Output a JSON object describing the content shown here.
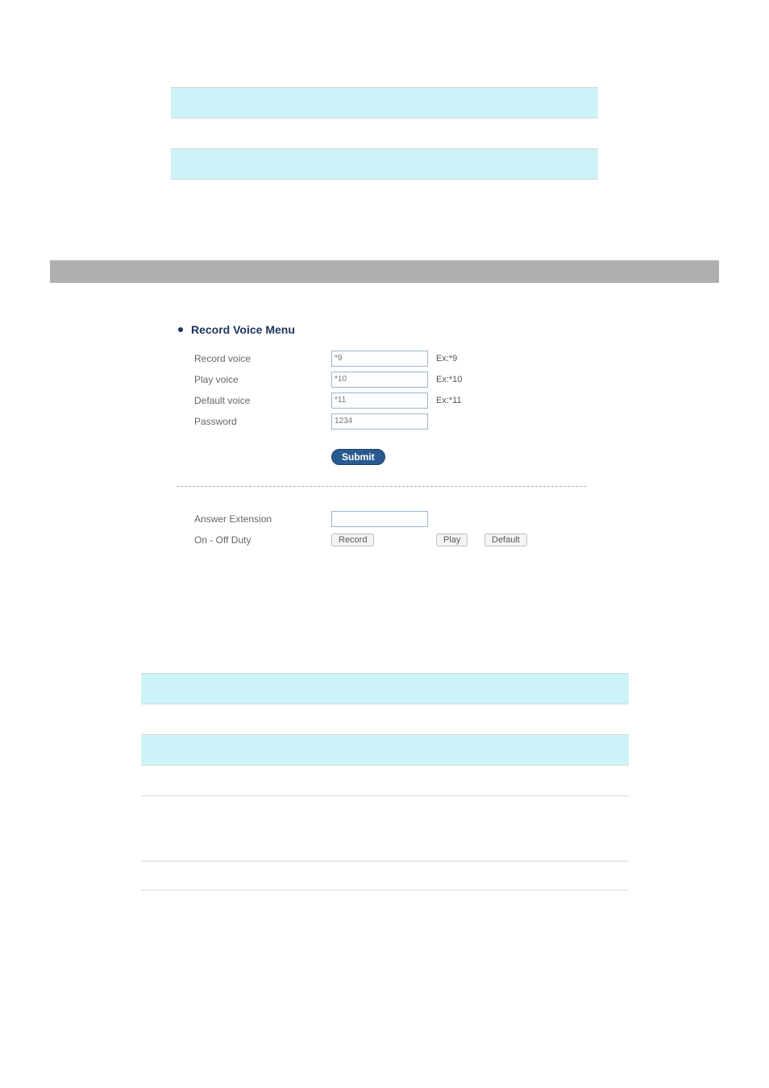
{
  "topTable": {
    "rows": [
      {
        "c1": "",
        "c2": "",
        "bg": "white"
      },
      {
        "c1": "",
        "c2": "",
        "bg": "blue"
      },
      {
        "c1": "",
        "c2": "",
        "bg": "white"
      },
      {
        "c1": "",
        "c2": "",
        "bg": "blue"
      }
    ]
  },
  "rvm": {
    "title": "Record Voice Menu",
    "fields": {
      "recordVoice": {
        "label": "Record voice",
        "value": "*9",
        "hint": "Ex:*9"
      },
      "playVoice": {
        "label": "Play voice",
        "value": "*10",
        "hint": "Ex:*10"
      },
      "defaultVoice": {
        "label": "Default voice",
        "value": "*11",
        "hint": "Ex:*11"
      },
      "password": {
        "label": "Password",
        "value": "1234"
      }
    },
    "submit": "Submit",
    "lower": {
      "answerExt": {
        "label": "Answer Extension",
        "value": ""
      },
      "onOffDuty": {
        "label": "On - Off  Duty"
      },
      "buttons": {
        "record": "Record",
        "play": "Play",
        "def": "Default"
      }
    }
  },
  "midTable": {
    "rows": [
      {
        "c1": "",
        "c2": "",
        "bg": "white"
      },
      {
        "c1": "",
        "c2": "",
        "bg": "blue"
      },
      {
        "c1": "",
        "c2": "",
        "bg": "white"
      },
      {
        "c1": "",
        "c2": "",
        "bg": "blue"
      },
      {
        "c1": "",
        "c2": "",
        "bg": "white"
      }
    ]
  },
  "bottomRow": {
    "c1": "",
    "c2": ""
  },
  "colors": {
    "rowBlue": "#ccf3f8",
    "rowBorder": "#d8d8d8",
    "grayBar": "#afafaf",
    "titleText": "#1a355d",
    "inputBorder": "#9fb5c9",
    "submitBg": "#2a5b8f",
    "submitBorder": "#1d4270",
    "textMuted": "#666"
  }
}
